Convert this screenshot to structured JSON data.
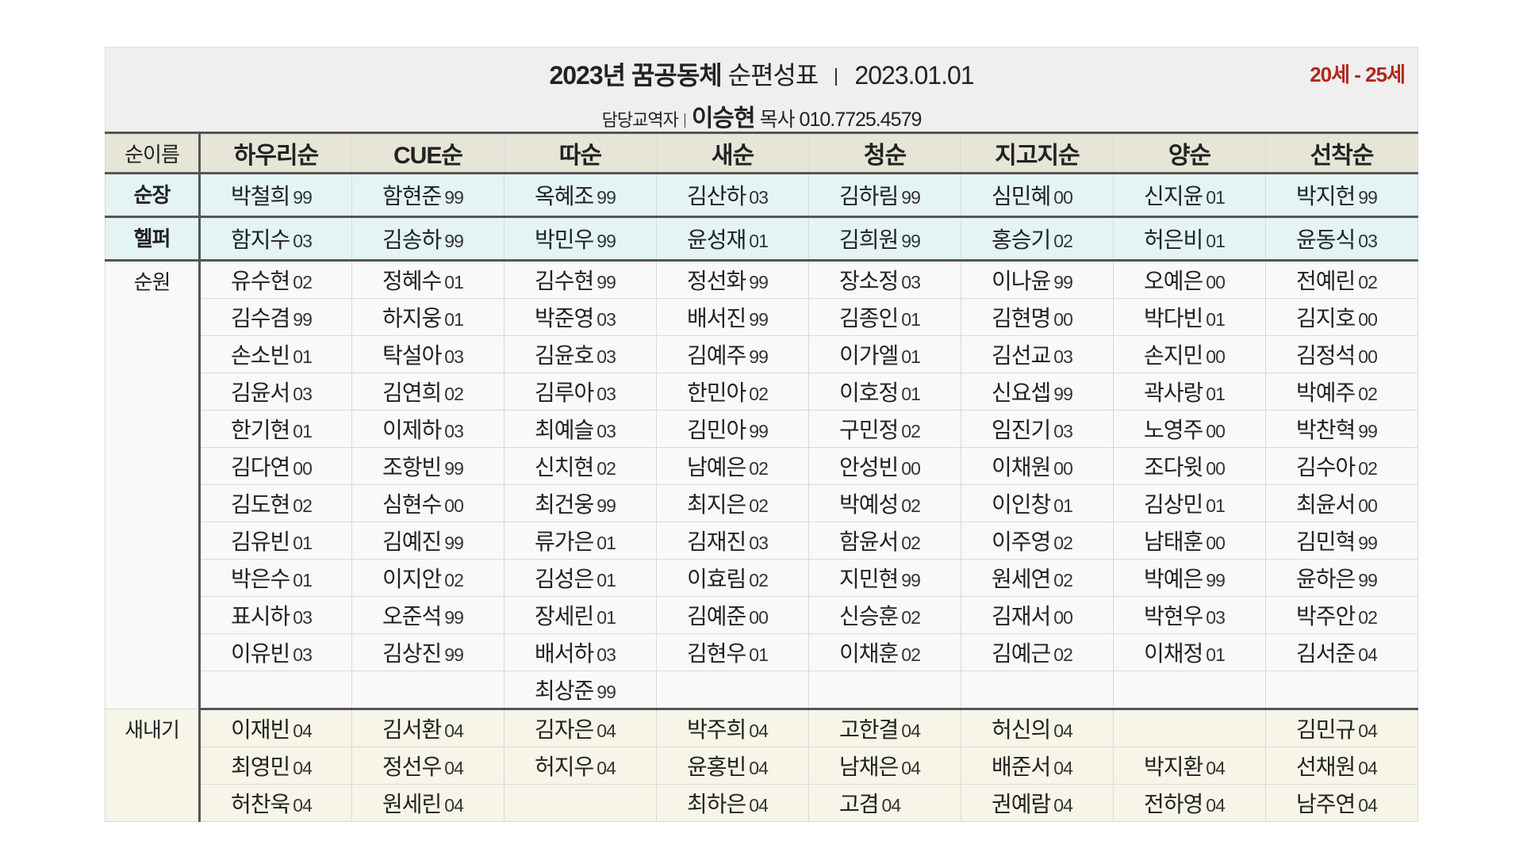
{
  "header": {
    "title_bold": "2023년 꿈공동체",
    "title_rest": "순편성표",
    "date": "2023.01.01",
    "age_range": "20세 - 25세",
    "manager_label": "담당교역자",
    "manager_name": "이승현",
    "manager_contact": "목사 010.7725.4579"
  },
  "table": {
    "columns": [
      "순이름",
      "하우리순",
      "CUE순",
      "따순",
      "새순",
      "청순",
      "지고지순",
      "양순",
      "선착순"
    ],
    "groups": [
      {
        "label": "순장",
        "rows": [
          [
            {
              "name": "박철희",
              "year": "99"
            },
            {
              "name": "함현준",
              "year": "99"
            },
            {
              "name": "옥혜조",
              "year": "99"
            },
            {
              "name": "김산하",
              "year": "03"
            },
            {
              "name": "김하림",
              "year": "99"
            },
            {
              "name": "심민혜",
              "year": "00"
            },
            {
              "name": "신지윤",
              "year": "01"
            },
            {
              "name": "박지헌",
              "year": "99"
            }
          ]
        ]
      },
      {
        "label": "헬퍼",
        "rows": [
          [
            {
              "name": "함지수",
              "year": "03"
            },
            {
              "name": "김송하",
              "year": "99"
            },
            {
              "name": "박민우",
              "year": "99"
            },
            {
              "name": "윤성재",
              "year": "01"
            },
            {
              "name": "김희원",
              "year": "99"
            },
            {
              "name": "홍승기",
              "year": "02"
            },
            {
              "name": "허은비",
              "year": "01"
            },
            {
              "name": "윤동식",
              "year": "03"
            }
          ]
        ]
      },
      {
        "label": "순원",
        "rows": [
          [
            {
              "name": "유수현",
              "year": "02"
            },
            {
              "name": "정혜수",
              "year": "01"
            },
            {
              "name": "김수현",
              "year": "99"
            },
            {
              "name": "정선화",
              "year": "99"
            },
            {
              "name": "장소정",
              "year": "03"
            },
            {
              "name": "이나윤",
              "year": "99"
            },
            {
              "name": "오예은",
              "year": "00"
            },
            {
              "name": "전예린",
              "year": "02"
            }
          ],
          [
            {
              "name": "김수겸",
              "year": "99"
            },
            {
              "name": "하지웅",
              "year": "01"
            },
            {
              "name": "박준영",
              "year": "03"
            },
            {
              "name": "배서진",
              "year": "99"
            },
            {
              "name": "김종인",
              "year": "01"
            },
            {
              "name": "김현명",
              "year": "00"
            },
            {
              "name": "박다빈",
              "year": "01"
            },
            {
              "name": "김지호",
              "year": "00"
            }
          ],
          [
            {
              "name": "손소빈",
              "year": "01"
            },
            {
              "name": "탁설아",
              "year": "03"
            },
            {
              "name": "김윤호",
              "year": "03"
            },
            {
              "name": "김예주",
              "year": "99"
            },
            {
              "name": "이가엘",
              "year": "01"
            },
            {
              "name": "김선교",
              "year": "03"
            },
            {
              "name": "손지민",
              "year": "00"
            },
            {
              "name": "김정석",
              "year": "00"
            }
          ],
          [
            {
              "name": "김윤서",
              "year": "03"
            },
            {
              "name": "김연희",
              "year": "02"
            },
            {
              "name": "김루아",
              "year": "03"
            },
            {
              "name": "한민아",
              "year": "02"
            },
            {
              "name": "이호정",
              "year": "01"
            },
            {
              "name": "신요셉",
              "year": "99"
            },
            {
              "name": "곽사랑",
              "year": "01"
            },
            {
              "name": "박예주",
              "year": "02"
            }
          ],
          [
            {
              "name": "한기현",
              "year": "01"
            },
            {
              "name": "이제하",
              "year": "03"
            },
            {
              "name": "최예슬",
              "year": "03"
            },
            {
              "name": "김민아",
              "year": "99"
            },
            {
              "name": "구민정",
              "year": "02"
            },
            {
              "name": "임진기",
              "year": "03"
            },
            {
              "name": "노영주",
              "year": "00"
            },
            {
              "name": "박찬혁",
              "year": "99"
            }
          ],
          [
            {
              "name": "김다연",
              "year": "00"
            },
            {
              "name": "조항빈",
              "year": "99"
            },
            {
              "name": "신치현",
              "year": "02"
            },
            {
              "name": "남예은",
              "year": "02"
            },
            {
              "name": "안성빈",
              "year": "00"
            },
            {
              "name": "이채원",
              "year": "00"
            },
            {
              "name": "조다윗",
              "year": "00"
            },
            {
              "name": "김수아",
              "year": "02"
            }
          ],
          [
            {
              "name": "김도현",
              "year": "02"
            },
            {
              "name": "심현수",
              "year": "00"
            },
            {
              "name": "최건웅",
              "year": "99"
            },
            {
              "name": "최지은",
              "year": "02"
            },
            {
              "name": "박예성",
              "year": "02"
            },
            {
              "name": "이인창",
              "year": "01"
            },
            {
              "name": "김상민",
              "year": "01"
            },
            {
              "name": "최윤서",
              "year": "00"
            }
          ],
          [
            {
              "name": "김유빈",
              "year": "01"
            },
            {
              "name": "김예진",
              "year": "99"
            },
            {
              "name": "류가은",
              "year": "01"
            },
            {
              "name": "김재진",
              "year": "03"
            },
            {
              "name": "함윤서",
              "year": "02"
            },
            {
              "name": "이주영",
              "year": "02"
            },
            {
              "name": "남태훈",
              "year": "00"
            },
            {
              "name": "김민혁",
              "year": "99"
            }
          ],
          [
            {
              "name": "박은수",
              "year": "01"
            },
            {
              "name": "이지안",
              "year": "02"
            },
            {
              "name": "김성은",
              "year": "01"
            },
            {
              "name": "이효림",
              "year": "02"
            },
            {
              "name": "지민현",
              "year": "99"
            },
            {
              "name": "원세연",
              "year": "02"
            },
            {
              "name": "박예은",
              "year": "99"
            },
            {
              "name": "윤하은",
              "year": "99"
            }
          ],
          [
            {
              "name": "표시하",
              "year": "03"
            },
            {
              "name": "오준석",
              "year": "99"
            },
            {
              "name": "장세린",
              "year": "01"
            },
            {
              "name": "김예준",
              "year": "00"
            },
            {
              "name": "신승훈",
              "year": "02"
            },
            {
              "name": "김재서",
              "year": "00"
            },
            {
              "name": "박현우",
              "year": "03"
            },
            {
              "name": "박주안",
              "year": "02"
            }
          ],
          [
            {
              "name": "이유빈",
              "year": "03"
            },
            {
              "name": "김상진",
              "year": "99"
            },
            {
              "name": "배서하",
              "year": "03"
            },
            {
              "name": "김현우",
              "year": "01"
            },
            {
              "name": "이채훈",
              "year": "02"
            },
            {
              "name": "김예근",
              "year": "02"
            },
            {
              "name": "이채정",
              "year": "01"
            },
            {
              "name": "김서준",
              "year": "04"
            }
          ],
          [
            null,
            null,
            {
              "name": "최상준",
              "year": "99"
            },
            null,
            null,
            null,
            null,
            null
          ]
        ]
      },
      {
        "label": "새내기",
        "rows": [
          [
            {
              "name": "이재빈",
              "year": "04"
            },
            {
              "name": "김서환",
              "year": "04"
            },
            {
              "name": "김자은",
              "year": "04"
            },
            {
              "name": "박주희",
              "year": "04"
            },
            {
              "name": "고한결",
              "year": "04"
            },
            {
              "name": "허신의",
              "year": "04"
            },
            null,
            {
              "name": "김민규",
              "year": "04"
            }
          ],
          [
            {
              "name": "최영민",
              "year": "04"
            },
            {
              "name": "정선우",
              "year": "04"
            },
            {
              "name": "허지우",
              "year": "04"
            },
            {
              "name": "윤홍빈",
              "year": "04"
            },
            {
              "name": "남채은",
              "year": "04"
            },
            {
              "name": "배준서",
              "year": "04"
            },
            {
              "name": "박지환",
              "year": "04"
            },
            {
              "name": "선채원",
              "year": "04"
            }
          ],
          [
            {
              "name": "허찬욱",
              "year": "04"
            },
            {
              "name": "원세린",
              "year": "04"
            },
            null,
            {
              "name": "최하은",
              "year": "04"
            },
            {
              "name": "고겸",
              "year": "04"
            },
            {
              "name": "권예람",
              "year": "04"
            },
            {
              "name": "전하영",
              "year": "04"
            },
            {
              "name": "남주연",
              "year": "04"
            }
          ]
        ]
      }
    ]
  }
}
